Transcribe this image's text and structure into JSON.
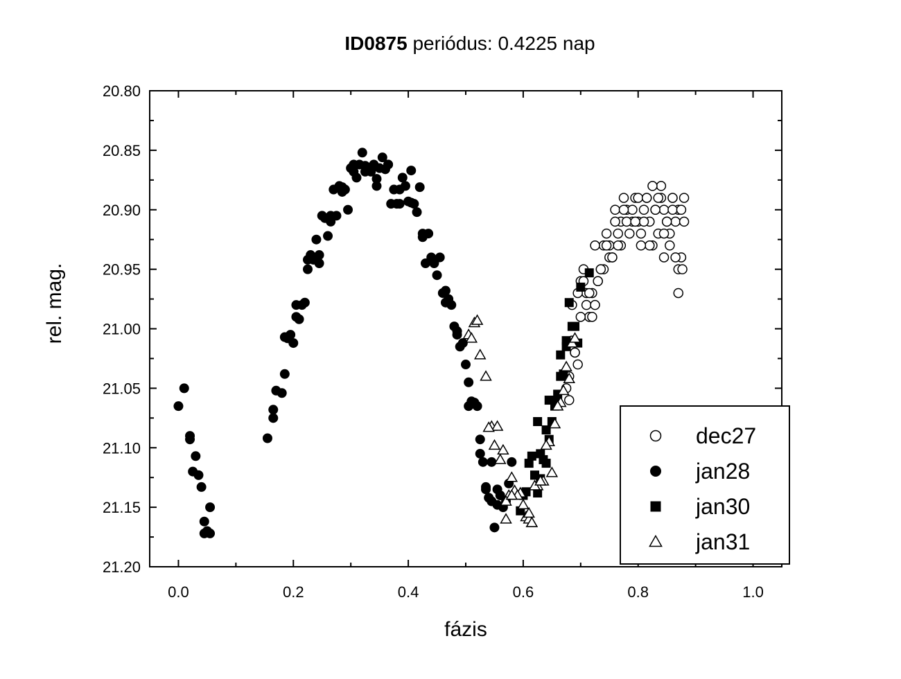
{
  "chart_data": {
    "type": "scatter",
    "title_bold": "ID0875",
    "title_rest": " periódus: 0.4225 nap",
    "xlabel": "fázis",
    "ylabel": "rel. mag.",
    "xlim": [
      -0.05,
      1.05
    ],
    "ylim": [
      20.8,
      21.2
    ],
    "y_inverted": true,
    "xticks": [
      "0.0",
      "0.2",
      "0.4",
      "0.6",
      "0.8",
      "1.0"
    ],
    "yticks": [
      "20.80",
      "20.85",
      "20.90",
      "20.95",
      "21.00",
      "21.05",
      "21.10",
      "21.15",
      "21.20"
    ],
    "legend_position": "bottom-right",
    "series": [
      {
        "name": "dec27",
        "marker": "circle-open",
        "x": [
          0.68,
          0.685,
          0.69,
          0.695,
          0.7,
          0.705,
          0.71,
          0.715,
          0.72,
          0.725,
          0.73,
          0.735,
          0.74,
          0.745,
          0.75,
          0.755,
          0.76,
          0.765,
          0.77,
          0.775,
          0.78,
          0.785,
          0.79,
          0.795,
          0.8,
          0.805,
          0.81,
          0.815,
          0.82,
          0.825,
          0.83,
          0.835,
          0.84,
          0.845,
          0.85,
          0.855,
          0.86,
          0.865,
          0.87,
          0.875,
          0.88,
          0.68,
          0.69,
          0.7,
          0.71,
          0.72,
          0.73,
          0.74,
          0.75,
          0.76,
          0.77,
          0.78,
          0.79,
          0.8,
          0.81,
          0.82,
          0.83,
          0.84,
          0.85,
          0.86,
          0.87,
          0.88,
          0.675,
          0.685,
          0.695,
          0.705,
          0.715,
          0.725,
          0.735,
          0.745,
          0.755,
          0.775,
          0.795,
          0.815,
          0.835,
          0.855,
          0.875,
          0.765,
          0.805,
          0.825,
          0.845,
          0.865,
          0.845,
          0.86,
          0.87,
          0.877
        ],
        "y": [
          21.04,
          21.01,
          21.02,
          21.03,
          20.96,
          20.95,
          20.98,
          20.99,
          20.97,
          20.98,
          20.96,
          20.95,
          20.93,
          20.92,
          20.93,
          20.94,
          20.9,
          20.92,
          20.91,
          20.89,
          20.9,
          20.92,
          20.91,
          20.89,
          20.91,
          20.92,
          20.9,
          20.89,
          20.91,
          20.93,
          20.9,
          20.92,
          20.89,
          20.9,
          20.91,
          20.93,
          20.89,
          20.91,
          20.9,
          20.94,
          20.89,
          21.06,
          21.02,
          20.99,
          20.97,
          20.99,
          20.96,
          20.95,
          20.94,
          20.91,
          20.93,
          20.91,
          20.9,
          20.89,
          20.91,
          20.93,
          20.9,
          20.88,
          20.91,
          20.9,
          20.95,
          20.91,
          21.05,
          20.98,
          20.97,
          20.96,
          20.97,
          20.93,
          20.95,
          20.93,
          20.94,
          20.9,
          20.91,
          20.89,
          20.89,
          20.92,
          20.9,
          20.93,
          20.93,
          20.88,
          20.92,
          20.94,
          20.94,
          20.89,
          20.97,
          20.95
        ]
      },
      {
        "name": "jan28",
        "marker": "circle-filled",
        "x": [
          0.0,
          0.01,
          0.02,
          0.02,
          0.03,
          0.035,
          0.04,
          0.045,
          0.05,
          0.055,
          0.055,
          0.045,
          0.025,
          0.155,
          0.165,
          0.165,
          0.17,
          0.18,
          0.185,
          0.185,
          0.19,
          0.195,
          0.2,
          0.205,
          0.21,
          0.215,
          0.22,
          0.225,
          0.23,
          0.235,
          0.24,
          0.245,
          0.25,
          0.255,
          0.26,
          0.265,
          0.27,
          0.275,
          0.28,
          0.285,
          0.29,
          0.295,
          0.3,
          0.305,
          0.31,
          0.315,
          0.32,
          0.325,
          0.33,
          0.335,
          0.34,
          0.345,
          0.35,
          0.355,
          0.36,
          0.365,
          0.37,
          0.375,
          0.38,
          0.385,
          0.39,
          0.395,
          0.4,
          0.405,
          0.41,
          0.415,
          0.42,
          0.425,
          0.43,
          0.435,
          0.44,
          0.445,
          0.45,
          0.455,
          0.46,
          0.465,
          0.47,
          0.475,
          0.48,
          0.485,
          0.49,
          0.495,
          0.5,
          0.505,
          0.51,
          0.515,
          0.52,
          0.525,
          0.53,
          0.535,
          0.54,
          0.545,
          0.55,
          0.555,
          0.56,
          0.565,
          0.57,
          0.575,
          0.58,
          0.545,
          0.525,
          0.505,
          0.485,
          0.465,
          0.445,
          0.425,
          0.405,
          0.385,
          0.365,
          0.345,
          0.325,
          0.305,
          0.285,
          0.265,
          0.245,
          0.225,
          0.205,
          0.555,
          0.535
        ],
        "y": [
          21.065,
          21.05,
          21.09,
          21.093,
          21.107,
          21.123,
          21.133,
          21.162,
          21.17,
          21.15,
          21.172,
          21.172,
          21.12,
          21.092,
          21.075,
          21.068,
          21.052,
          21.054,
          21.038,
          21.007,
          21.008,
          21.005,
          21.012,
          20.99,
          20.992,
          20.98,
          20.978,
          20.942,
          20.938,
          20.942,
          20.925,
          20.945,
          20.905,
          20.907,
          20.922,
          20.91,
          20.883,
          20.905,
          20.88,
          20.881,
          20.883,
          20.9,
          20.865,
          20.862,
          20.873,
          20.862,
          20.852,
          20.868,
          20.867,
          20.868,
          20.862,
          20.88,
          20.865,
          20.856,
          20.866,
          20.862,
          20.895,
          20.883,
          20.895,
          20.895,
          20.873,
          20.88,
          20.893,
          20.867,
          20.895,
          20.902,
          20.881,
          20.92,
          20.945,
          20.92,
          20.94,
          20.945,
          20.955,
          20.94,
          20.97,
          20.968,
          20.975,
          20.98,
          20.998,
          21.002,
          21.015,
          21.012,
          21.03,
          21.045,
          21.061,
          21.062,
          21.065,
          21.093,
          21.112,
          21.133,
          21.142,
          21.112,
          21.167,
          21.135,
          21.14,
          21.15,
          21.145,
          21.13,
          21.112,
          21.145,
          21.105,
          21.065,
          21.005,
          20.978,
          20.944,
          20.923,
          20.894,
          20.883,
          20.862,
          20.874,
          20.863,
          20.868,
          20.885,
          20.905,
          20.938,
          20.95,
          20.98,
          21.148,
          21.135
        ]
      },
      {
        "name": "jan30",
        "marker": "square-filled",
        "x": [
          0.595,
          0.6,
          0.605,
          0.61,
          0.615,
          0.62,
          0.625,
          0.63,
          0.635,
          0.64,
          0.645,
          0.65,
          0.655,
          0.66,
          0.665,
          0.67,
          0.675,
          0.68,
          0.685,
          0.69,
          0.695,
          0.7,
          0.715,
          0.62,
          0.625,
          0.63,
          0.64,
          0.645,
          0.655,
          0.665,
          0.675
        ],
        "y": [
          21.153,
          21.14,
          21.137,
          21.113,
          21.107,
          21.123,
          21.078,
          21.105,
          21.11,
          21.085,
          21.06,
          21.078,
          21.065,
          21.055,
          21.022,
          21.038,
          21.015,
          20.978,
          20.998,
          20.998,
          21.012,
          20.965,
          20.953,
          21.123,
          21.138,
          21.126,
          21.113,
          21.093,
          21.06,
          21.04,
          21.01
        ]
      },
      {
        "name": "jan31",
        "marker": "triangle-open",
        "x": [
          0.505,
          0.515,
          0.525,
          0.535,
          0.545,
          0.555,
          0.565,
          0.575,
          0.585,
          0.595,
          0.605,
          0.615,
          0.625,
          0.635,
          0.645,
          0.655,
          0.665,
          0.675,
          0.685,
          0.51,
          0.52,
          0.54,
          0.55,
          0.56,
          0.57,
          0.58,
          0.59,
          0.6,
          0.61,
          0.62,
          0.63,
          0.64,
          0.65,
          0.66,
          0.67,
          0.68,
          0.69,
          0.61,
          0.615,
          0.57,
          0.58
        ],
        "y": [
          21.005,
          20.995,
          21.022,
          21.04,
          21.082,
          21.082,
          21.102,
          21.14,
          21.136,
          21.138,
          21.158,
          21.163,
          21.132,
          21.128,
          21.095,
          21.08,
          21.062,
          21.032,
          21.012,
          21.008,
          20.993,
          21.083,
          21.098,
          21.11,
          21.145,
          21.125,
          21.14,
          21.148,
          21.16,
          21.132,
          21.128,
          21.098,
          21.121,
          21.065,
          21.052,
          21.042,
          21.008,
          21.155,
          21.163,
          21.16,
          21.14
        ]
      }
    ]
  }
}
